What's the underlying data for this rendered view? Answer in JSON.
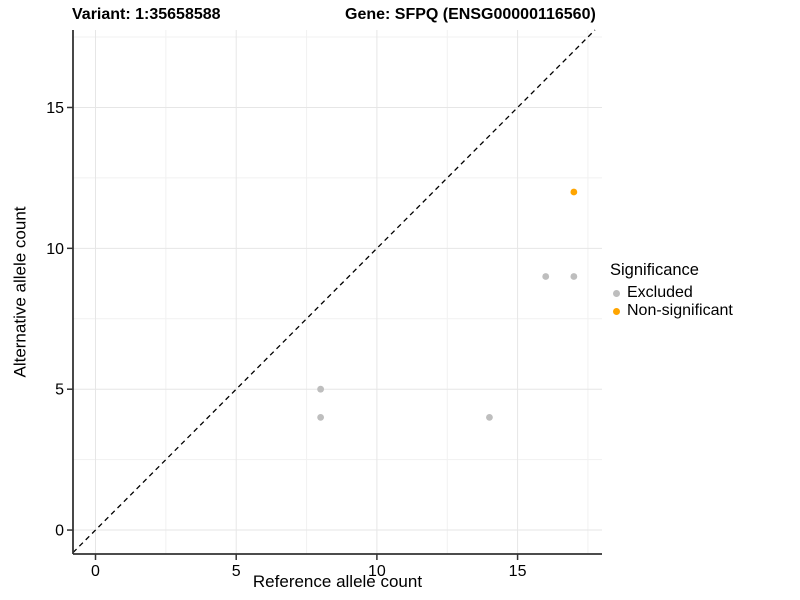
{
  "app": {
    "background": "#FFFFFF"
  },
  "chart_data": {
    "type": "scatter",
    "titles": {
      "left": "Variant: 1:35658588",
      "right": "Gene: SFPQ (ENSG00000116560)"
    },
    "xlabel": "Reference allele count",
    "ylabel": "Alternative allele count",
    "xlim": [
      -0.8,
      18.0
    ],
    "ylim": [
      -0.85,
      17.75
    ],
    "xticks": [
      0,
      5,
      10,
      15
    ],
    "yticks": [
      0,
      5,
      10,
      15
    ],
    "xgrid_minor": [
      2.5,
      7.5,
      12.5,
      17.5
    ],
    "ygrid_minor": [
      2.5,
      7.5,
      12.5,
      17.5
    ],
    "grid": "on",
    "identity_line": {
      "equation": "y = x",
      "style": "dashed",
      "color": "#000000"
    },
    "legend": {
      "title": "Significance",
      "position": "right",
      "entries": [
        {
          "label": "Excluded",
          "color": "#BEBEBE"
        },
        {
          "label": "Non-significant",
          "color": "#FFA500"
        }
      ]
    },
    "series": [
      {
        "name": "Excluded",
        "color": "#BEBEBE",
        "points": [
          [
            8,
            5
          ],
          [
            8,
            4
          ],
          [
            14,
            4
          ],
          [
            16,
            9
          ],
          [
            17,
            9
          ]
        ]
      },
      {
        "name": "Non-significant",
        "color": "#FFA500",
        "points": [
          [
            17,
            12
          ]
        ]
      }
    ],
    "point_radius_px": 3.4,
    "colors": {
      "grid_major": "#E6E6E6",
      "grid_minor": "#F1F1F1",
      "axis": "#333333",
      "text": "#000000"
    }
  }
}
